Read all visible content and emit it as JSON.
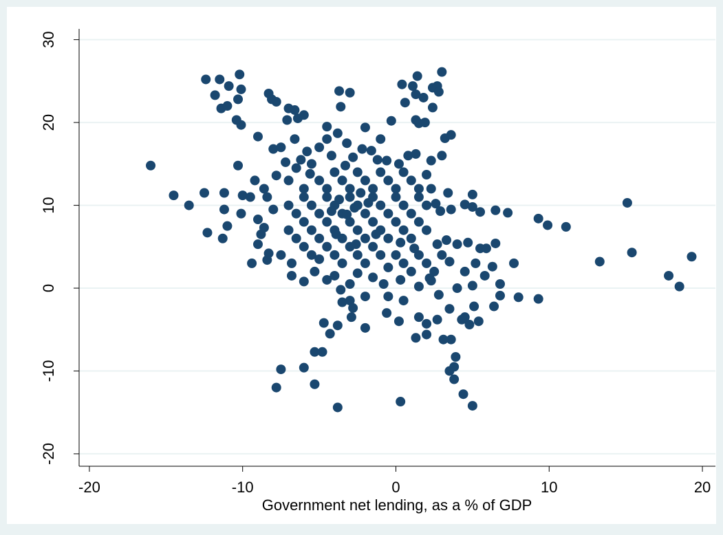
{
  "chart_data": {
    "type": "scatter",
    "x_label": "Government net lending, as a % of GDP",
    "color": "#1a476f",
    "grid": true,
    "xlim": [
      -20.67,
      20.85
    ],
    "ylim": [
      -21.5,
      31.3
    ],
    "xticks": [
      -20,
      -10,
      0,
      10,
      20
    ],
    "yticks": [
      -20,
      -10,
      0,
      10,
      20,
      30
    ],
    "x": [
      -16,
      -14.5,
      -13.5,
      -12.5,
      -12.3,
      -12.4,
      -11.5,
      -11.8,
      -11.4,
      -11,
      -10.9,
      -10.2,
      -10.1,
      -10.3,
      -10.1,
      -10.4,
      -11.2,
      -11.2,
      -11,
      -11.3,
      -10.3,
      -10,
      -10.1,
      -9.5,
      -9.4,
      -9,
      -8.8,
      -8.4,
      -8.3,
      -9,
      -9.2,
      -8.6,
      -9,
      -8.3,
      -8.1,
      -7.8,
      -8,
      -7.5,
      -7.1,
      -7,
      -6.6,
      -6.4,
      -6,
      -7.8,
      -7.5,
      -6,
      -5.3,
      -5.3,
      -4.8,
      -4.7,
      -4.3,
      -3.8,
      -3.8,
      -3.5,
      -3,
      -2.9,
      -2,
      -3.6,
      -3.7,
      -3,
      -4.5,
      -2,
      -1,
      -0.3,
      0.4,
      1.1,
      1.4,
      2.4,
      2.7,
      3,
      2.8,
      2.4,
      1.3,
      1.5,
      1.9,
      1.3,
      1.8,
      0.6,
      3.2,
      3.6,
      3,
      2.3,
      3.4,
      3.6,
      2.6,
      2.9,
      4.5,
      5,
      5,
      5.5,
      6.5,
      7.3,
      9.3,
      9.9,
      11.1,
      15.1,
      13.3,
      15.4,
      17.8,
      18.5,
      19.3,
      7.7,
      8,
      9.3,
      6.8,
      6.8,
      6.4,
      6.3,
      6.5,
      5.5,
      5.9,
      5.4,
      5.1,
      4.8,
      4.5,
      4.3,
      5,
      4.4,
      3.8,
      3.5,
      3.8,
      3.9,
      3.6,
      3.1,
      2,
      1.3,
      0.3,
      0.2,
      -0.6,
      -0.5,
      0.5,
      1.5,
      2,
      2.7,
      3.5,
      4,
      4.5,
      5,
      5.2,
      5.8,
      4.7,
      4,
      3.3,
      -7,
      -6.5,
      -6,
      -5.5,
      -5,
      -4.5,
      -4,
      -3.5,
      -3,
      -2.5,
      -2,
      -1.5,
      -1,
      -0.5,
      0,
      0.5,
      1,
      1.5,
      -7,
      -6.5,
      -6,
      -5.5,
      -5,
      -4.5,
      -4,
      -3.5,
      -3,
      -2.5,
      -2,
      -1.5,
      -1,
      -0.5,
      0,
      0.5,
      1,
      1.5,
      2,
      -7,
      -6.5,
      -6,
      -5.5,
      -5,
      -4.5,
      -4,
      -3.5,
      -3,
      -2.5,
      -2,
      -1.5,
      -1,
      -0.5,
      0,
      0.5,
      1,
      1.5,
      2,
      -7.5,
      -6.8,
      -6,
      -5.5,
      -5,
      -4.5,
      -4,
      -3.5,
      -3,
      -2.5,
      -2,
      -1.5,
      -1,
      -0.5,
      0,
      0.5,
      1,
      1.5,
      2,
      2.5,
      3,
      -6.8,
      -6,
      -5.3,
      -4.5,
      -4,
      -3,
      -2.5,
      -1.5,
      -0.8,
      0.3,
      1.5,
      2.3,
      2.8,
      -2,
      -2.8,
      -3.6,
      -6.2,
      -5.8,
      -5,
      -4.5,
      -4.2,
      -3.8,
      -3.2,
      -2.8,
      -2.2,
      -1.6,
      -1.2,
      -0.6,
      0.2,
      0.8,
      1.3,
      2,
      2.3,
      -8,
      -8.4,
      -7.8,
      -8.6,
      -7.2,
      -6.6,
      -5.6,
      -3.7,
      -2.7,
      -3.2,
      -2.3,
      -4.2,
      -1.8,
      -3.3,
      -3.9,
      -2.6,
      -1.3,
      0.3,
      1.2,
      2.7,
      3.5,
      2.2
    ],
    "values": [
      14.8,
      11.2,
      10,
      11.5,
      6.7,
      25.2,
      25.2,
      23.3,
      21.7,
      22,
      24.4,
      25.8,
      24,
      22.8,
      19.7,
      20.3,
      11.5,
      9.5,
      7.5,
      6,
      14.8,
      11.2,
      9,
      11,
      3,
      5.3,
      6.5,
      3.4,
      4.2,
      8.3,
      13,
      12,
      18.3,
      23.5,
      22.8,
      22.5,
      16.8,
      17,
      20.3,
      21.7,
      21.5,
      20.5,
      20.9,
      -12,
      -9.8,
      -9.6,
      -11.6,
      -7.7,
      -7.7,
      -4.2,
      -5.5,
      -14.4,
      -4.5,
      -1.7,
      -1.5,
      -3.5,
      -4.8,
      21.9,
      23.8,
      23.6,
      19.5,
      19.4,
      18,
      20.2,
      24.6,
      24.4,
      25.6,
      24.2,
      24.4,
      26.1,
      23.7,
      21.8,
      20.3,
      19.9,
      20,
      23.4,
      23,
      22.4,
      18.1,
      18.5,
      16,
      15.4,
      11.5,
      9.5,
      10.2,
      9.3,
      10.1,
      11.3,
      9.8,
      9.2,
      9.4,
      9.1,
      8.4,
      7.6,
      7.4,
      10.3,
      3.2,
      4.3,
      1.5,
      0.2,
      3.8,
      3,
      -1.1,
      -1.3,
      0.5,
      -0.9,
      -2.2,
      2.6,
      5.4,
      4.8,
      4.8,
      -4,
      -2.2,
      -4.4,
      -3.5,
      -3.8,
      -14.2,
      -12.8,
      -11,
      -10,
      -9.5,
      -8.3,
      -6.2,
      -6.2,
      -5.6,
      -6,
      -13.7,
      -4,
      -3,
      -1,
      -1.5,
      -3.5,
      -4.3,
      -3.8,
      -2.5,
      0,
      2,
      0.3,
      3,
      1.5,
      5.5,
      5.3,
      5.8,
      13,
      14.5,
      12,
      15,
      13,
      12,
      14,
      13,
      12,
      14,
      13,
      12,
      14,
      13,
      12,
      14,
      13,
      12,
      10,
      9,
      11,
      10,
      9,
      11,
      10,
      9,
      11,
      10,
      9,
      11,
      10,
      9,
      11,
      10,
      9,
      11,
      10,
      7,
      6,
      8,
      7,
      6,
      8,
      7,
      6,
      8,
      7,
      6,
      8,
      7,
      6,
      8,
      7,
      6,
      8,
      7,
      4,
      3,
      5,
      4,
      3.5,
      5,
      4,
      3,
      5,
      4,
      3,
      5,
      4,
      2.5,
      4,
      3,
      2,
      4,
      3,
      2,
      4,
      1.5,
      0.8,
      2,
      1,
      1.5,
      0.5,
      1.8,
      1.3,
      0.5,
      1,
      0.2,
      0.9,
      -0.8,
      -1,
      -2.4,
      -0.2,
      15.5,
      16.5,
      17,
      18,
      16,
      18.7,
      17.5,
      15.8,
      16.8,
      16.6,
      15.5,
      15.4,
      15,
      16,
      16.2,
      13.7,
      12,
      9.5,
      11,
      13.6,
      7.3,
      15.2,
      18,
      13.8,
      10.7,
      9.7,
      8.9,
      11.5,
      9.3,
      10.3,
      14.8,
      6.5,
      5.3,
      6.5,
      5.5,
      4.8,
      5.3,
      3.2,
      1.2
    ]
  }
}
